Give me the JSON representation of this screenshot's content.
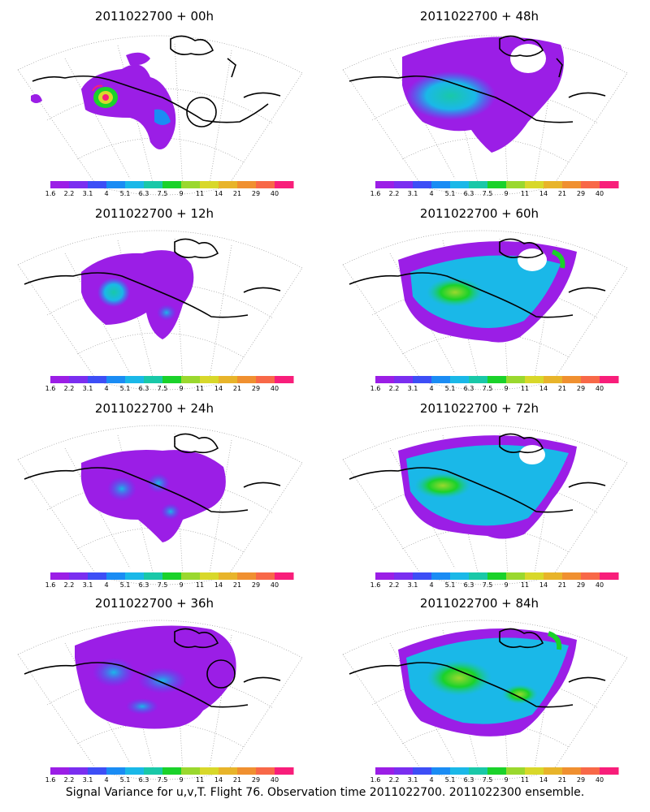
{
  "panels": [
    {
      "title": "2011022700 + 00h"
    },
    {
      "title": "2011022700 + 48h"
    },
    {
      "title": "2011022700 + 12h"
    },
    {
      "title": "2011022700 + 60h"
    },
    {
      "title": "2011022700 + 24h"
    },
    {
      "title": "2011022700 + 72h"
    },
    {
      "title": "2011022700 + 36h"
    },
    {
      "title": "2011022700 + 84h"
    }
  ],
  "colorbar": {
    "ticks": [
      "1.6",
      "2.2",
      "3.1",
      "4",
      "5.1",
      "6.3",
      "7.5",
      "9",
      "11",
      "14",
      "21",
      "29",
      "40"
    ],
    "colors": [
      "#9b1ee6",
      "#7a2ef0",
      "#3d4ef6",
      "#1a8cf4",
      "#1ab8e8",
      "#19c8a8",
      "#1ad22a",
      "#9ad82e",
      "#d8d82a",
      "#e8b42a",
      "#f09030",
      "#f86848",
      "#f81e7a"
    ]
  },
  "footer": {
    "caption": "Signal Variance for u,v,T. Flight 76. Observation time 2011022700. 2011022300 ensemble."
  }
}
